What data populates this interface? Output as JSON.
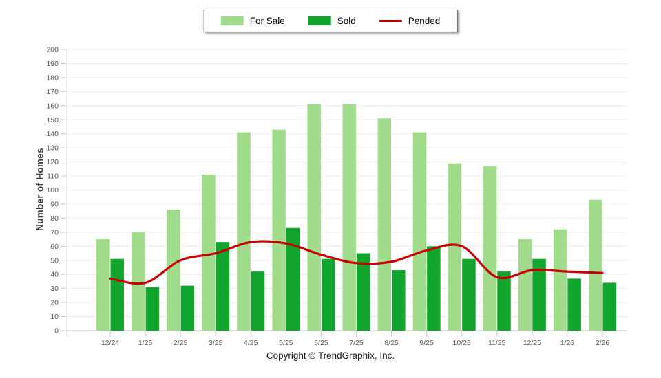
{
  "footer": {
    "copyright": "Copyright © TrendGraphix, Inc."
  },
  "chart_data": {
    "type": "bar",
    "title": "",
    "ylabel": "Number of Homes",
    "xlabel": "",
    "ylim": [
      0,
      200
    ],
    "ytick_step": 10,
    "grid": true,
    "legend_position": "top-center",
    "categories": [
      "12/24",
      "1/25",
      "2/25",
      "3/25",
      "4/25",
      "5/25",
      "6/25",
      "7/25",
      "8/25",
      "9/25",
      "10/25",
      "11/25",
      "12/25",
      "1/26",
      "2/26"
    ],
    "series": [
      {
        "name": "For Sale",
        "type": "bar",
        "color": "#a0dc8c",
        "values": [
          65,
          70,
          86,
          111,
          141,
          143,
          161,
          161,
          151,
          141,
          119,
          117,
          65,
          72,
          93
        ]
      },
      {
        "name": "Sold",
        "type": "bar",
        "color": "#12a52e",
        "values": [
          51,
          31,
          32,
          63,
          42,
          73,
          51,
          55,
          43,
          60,
          51,
          42,
          51,
          37,
          34
        ]
      },
      {
        "name": "Pended",
        "type": "line",
        "color": "#c60000",
        "values": [
          37,
          34,
          50,
          55,
          63,
          62,
          54,
          48,
          49,
          57,
          60,
          38,
          43,
          42,
          41
        ]
      }
    ],
    "grid_color": "#ececec",
    "axis_color": "#c9c9c9",
    "tick_color": "#c4c4c4",
    "tick_label_color": "#555555"
  }
}
